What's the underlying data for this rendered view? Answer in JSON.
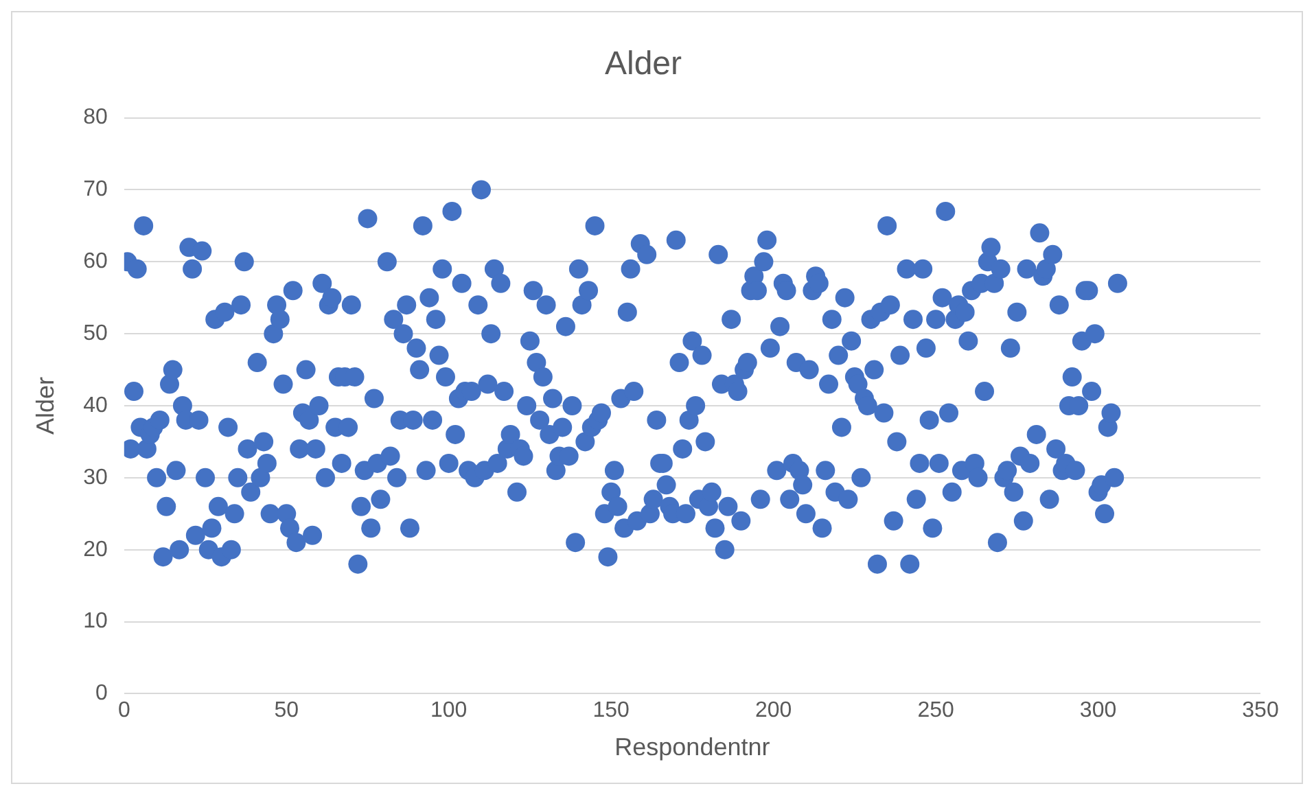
{
  "chart_data": {
    "type": "scatter",
    "title": "Alder",
    "xlabel": "Respondentnr",
    "ylabel": "Alder",
    "x": [
      1,
      2,
      3,
      4,
      5,
      6,
      7,
      8,
      9,
      10,
      11,
      12,
      13,
      14,
      15,
      16,
      17,
      18,
      19,
      20,
      21,
      22,
      23,
      24,
      25,
      26,
      27,
      28,
      29,
      30,
      31,
      32,
      33,
      34,
      35,
      36,
      37,
      38,
      39,
      41,
      42,
      43,
      44,
      45,
      46,
      47,
      48,
      49,
      50,
      51,
      52,
      53,
      54,
      55,
      56,
      57,
      58,
      59,
      60,
      61,
      62,
      63,
      64,
      65,
      66,
      67,
      68,
      69,
      70,
      71,
      72,
      73,
      74,
      75,
      76,
      77,
      78,
      79,
      81,
      82,
      83,
      84,
      85,
      86,
      87,
      88,
      89,
      90,
      91,
      92,
      93,
      94,
      95,
      96,
      97,
      98,
      99,
      100,
      101,
      102,
      103,
      104,
      105,
      106,
      107,
      108,
      109,
      110,
      111,
      112,
      113,
      114,
      115,
      116,
      117,
      118,
      119,
      121,
      122,
      123,
      124,
      125,
      126,
      127,
      128,
      129,
      130,
      131,
      132,
      133,
      134,
      135,
      136,
      137,
      138,
      139,
      140,
      141,
      142,
      143,
      144,
      145,
      146,
      147,
      148,
      149,
      150,
      151,
      152,
      153,
      154,
      155,
      156,
      157,
      158,
      159,
      161,
      162,
      163,
      164,
      165,
      166,
      167,
      168,
      169,
      170,
      171,
      172,
      173,
      174,
      175,
      176,
      177,
      178,
      179,
      180,
      181,
      182,
      183,
      184,
      185,
      186,
      187,
      188,
      189,
      190,
      191,
      192,
      193,
      194,
      195,
      196,
      197,
      198,
      199,
      201,
      202,
      203,
      204,
      205,
      206,
      207,
      208,
      209,
      210,
      211,
      212,
      213,
      214,
      215,
      216,
      217,
      218,
      219,
      220,
      221,
      222,
      223,
      224,
      225,
      226,
      227,
      228,
      229,
      230,
      231,
      232,
      233,
      234,
      235,
      236,
      237,
      238,
      239,
      241,
      242,
      243,
      244,
      245,
      246,
      247,
      248,
      249,
      250,
      251,
      252,
      253,
      254,
      255,
      256,
      257,
      258,
      259,
      260,
      261,
      262,
      263,
      264,
      265,
      266,
      267,
      268,
      269,
      270,
      271,
      272,
      273,
      274,
      275,
      276,
      277,
      278,
      279,
      281,
      282,
      283,
      284,
      285,
      286,
      287,
      288,
      289,
      290,
      291,
      292,
      293,
      294,
      295,
      296,
      297,
      298,
      299,
      300,
      301,
      302,
      303,
      304,
      305,
      306
    ],
    "series": [
      {
        "color": "#4472c4",
        "values": [
          60,
          34,
          42,
          59,
          37,
          65,
          34,
          36,
          37,
          30,
          38,
          19,
          26,
          43,
          45,
          31,
          20,
          40,
          38,
          62,
          59,
          22,
          38,
          61.5,
          30,
          20,
          23,
          52,
          26,
          19,
          53,
          37,
          20,
          25,
          30,
          54,
          60,
          34,
          28,
          46,
          30,
          35,
          32,
          25,
          50,
          54,
          52,
          43,
          25,
          23,
          56,
          21,
          34,
          39,
          45,
          38,
          22,
          34,
          40,
          57,
          30,
          54,
          55,
          37,
          44,
          32,
          44,
          37,
          54,
          44,
          18,
          26,
          31,
          66,
          23,
          41,
          32,
          27,
          60,
          33,
          52,
          30,
          38,
          50,
          54,
          23,
          38,
          48,
          45,
          65,
          31,
          55,
          38,
          52,
          47,
          59,
          44,
          32,
          67,
          36,
          41,
          57,
          42,
          31,
          42,
          30,
          54,
          70,
          31,
          43,
          50,
          59,
          32,
          57,
          42,
          34,
          36,
          28,
          34,
          33,
          40,
          49,
          56,
          46,
          38,
          44,
          54,
          36,
          41,
          31,
          33,
          37,
          51,
          33,
          40,
          21,
          59,
          54,
          35,
          56,
          37,
          65,
          38,
          39,
          25,
          19,
          28,
          31,
          26,
          41,
          23,
          53,
          59,
          42,
          24,
          62.5,
          61,
          25,
          27,
          38,
          32,
          32,
          29,
          26,
          25,
          63,
          46,
          34,
          25,
          38,
          49,
          40,
          27,
          47,
          35,
          26,
          28,
          23,
          61,
          43,
          20,
          26,
          52,
          43,
          42,
          24,
          45,
          46,
          56,
          58,
          56,
          27,
          60,
          63,
          48,
          31,
          51,
          57,
          56,
          27,
          32,
          46,
          31,
          29,
          25,
          45,
          56,
          58,
          57,
          23,
          31,
          43,
          52,
          28,
          47,
          37,
          55,
          27,
          49,
          44,
          43,
          30,
          41,
          40,
          52,
          45,
          18,
          53,
          39,
          65,
          54,
          24,
          35,
          47,
          59,
          18,
          52,
          27,
          32,
          59,
          48,
          38,
          23,
          52,
          32,
          55,
          67,
          39,
          28,
          52,
          54,
          31,
          53,
          49,
          56,
          32,
          30,
          57,
          42,
          60,
          62,
          57,
          21,
          59,
          30,
          31,
          48,
          28,
          53,
          33,
          24,
          59,
          32,
          36,
          64,
          58,
          59,
          27,
          61,
          34,
          54,
          31,
          32,
          40,
          44,
          31,
          40,
          49,
          56,
          56,
          42,
          50,
          28,
          29,
          25,
          37,
          39,
          30,
          57
        ]
      }
    ],
    "xlim": [
      0,
      350
    ],
    "xticks": [
      0,
      50,
      100,
      150,
      200,
      250,
      300,
      350
    ],
    "ylim": [
      0,
      80
    ],
    "yticks": [
      0,
      10,
      20,
      30,
      40,
      50,
      60,
      70,
      80
    ],
    "grid": "y",
    "marker": "circle"
  }
}
